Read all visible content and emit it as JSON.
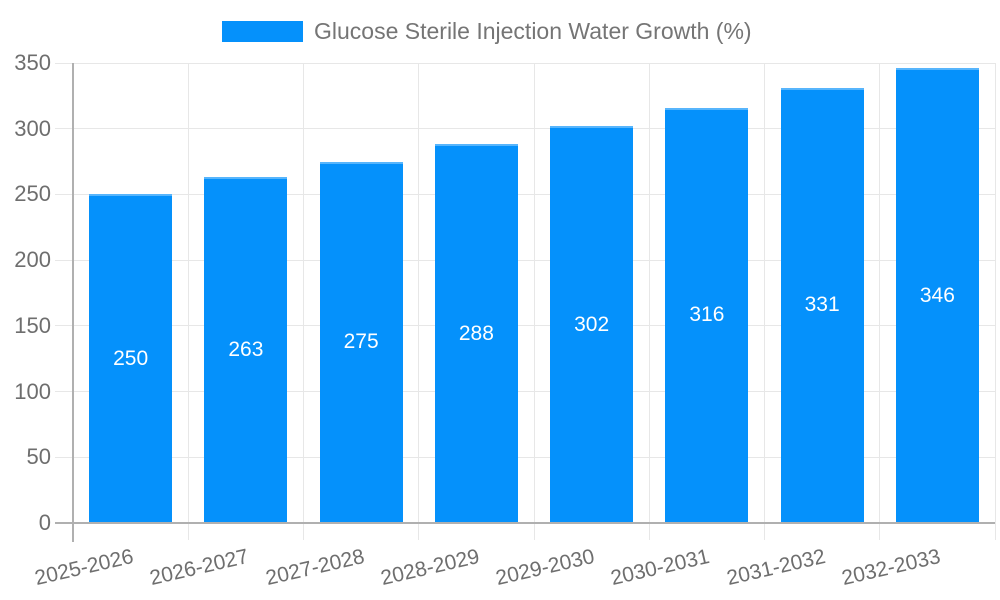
{
  "legend": {
    "label": "Glucose Sterile Injection Water Growth (%)"
  },
  "chart_data": {
    "type": "bar",
    "title": "Glucose Sterile Injection Water Growth (%)",
    "categories": [
      "2025-2026",
      "2026-2027",
      "2027-2028",
      "2028-2029",
      "2029-2030",
      "2030-2031",
      "2031-2032",
      "2032-2033"
    ],
    "values": [
      250,
      263,
      275,
      288,
      302,
      316,
      331,
      346
    ],
    "bar_labels": [
      "250",
      "263",
      "275",
      "288",
      "302",
      "316",
      "331",
      "346"
    ],
    "xlabel": "",
    "ylabel": "",
    "ylim": [
      0,
      350
    ],
    "yticks": [
      0,
      50,
      100,
      150,
      200,
      250,
      300,
      350
    ],
    "grid": true,
    "legend_position": "top",
    "x_tick_rotation_deg": -13,
    "colors": {
      "bar": "#0591FB",
      "grid": "#E7E7E7",
      "axis": "#B0B0B0",
      "tick_label": "#6E6E6E",
      "legend_text": "#757575",
      "bar_label": "#FFFFFF",
      "background": "#FFFFFF"
    }
  }
}
